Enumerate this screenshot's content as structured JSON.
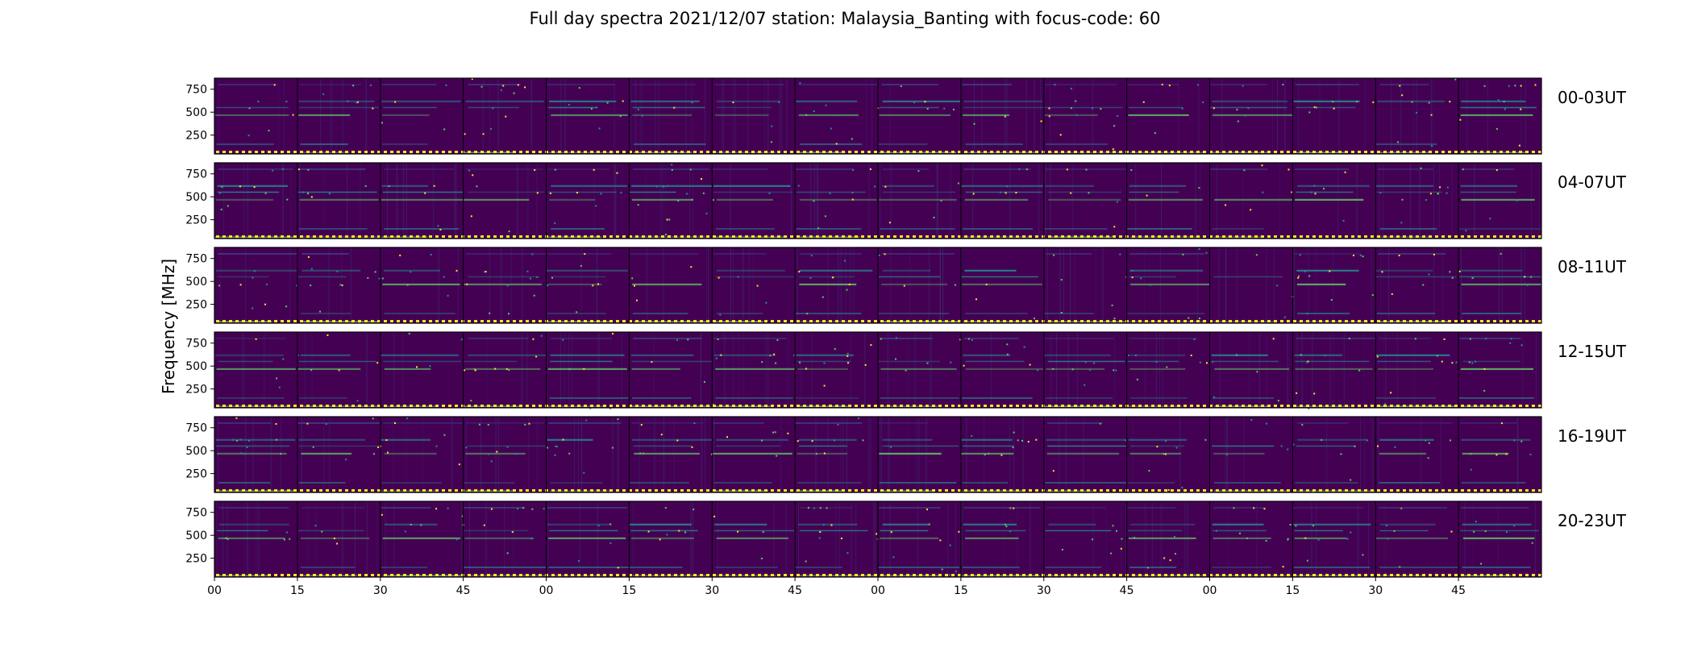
{
  "figure": {
    "title": "Full day spectra 2021/12/07 station: Malaysia_Banting with focus-code: 60"
  },
  "chart_data": {
    "type": "heatmap",
    "title": "Full day spectra 2021/12/07 station: Malaysia_Banting with focus-code: 60",
    "ylabel": "Frequency [MHz]",
    "xlabel": "",
    "colormap": "viridis",
    "colors": {
      "background": "#440154",
      "mid": "#3b528b",
      "teal": "#21918c",
      "green": "#5ec962",
      "yellow": "#fde725"
    },
    "yticks": [
      250,
      500,
      750
    ],
    "ylim": [
      45,
      870
    ],
    "xticks": [
      "00",
      "15",
      "30",
      "45",
      "00",
      "15",
      "30",
      "45",
      "00",
      "15",
      "30",
      "45",
      "00",
      "15",
      "30",
      "45"
    ],
    "panels": [
      {
        "label": "00-03UT"
      },
      {
        "label": "04-07UT"
      },
      {
        "label": "08-11UT"
      },
      {
        "label": "12-15UT"
      },
      {
        "label": "16-19UT"
      },
      {
        "label": "20-23UT"
      }
    ],
    "segments_per_row": 16,
    "segment_minutes": 15,
    "emission_lines_mhz": [
      620,
      470,
      550,
      800,
      150,
      60
    ],
    "grid": false
  }
}
